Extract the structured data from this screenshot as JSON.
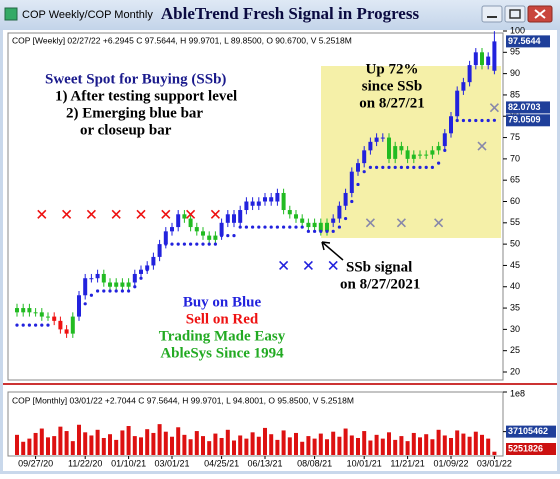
{
  "window_title": "COP Weekly/COP Monthly",
  "chart_data": {
    "type": "candlestick",
    "title": "AbleTrend Fresh Signal in Progress",
    "info": "COP [Weekly] 02/27/22 +6.2945 C 97.5644, H 99.9701, L 89.8500, O 90.6700, V 5.2518M",
    "categories": [
      null,
      null,
      null,
      "09/27/20",
      null,
      null,
      null,
      null,
      null,
      null,
      null,
      "11/22/20",
      null,
      null,
      null,
      null,
      null,
      null,
      "01/10/21",
      null,
      null,
      null,
      null,
      null,
      null,
      "03/01/21",
      null,
      null,
      null,
      null,
      null,
      null,
      null,
      "04/25/21",
      null,
      null,
      null,
      null,
      null,
      null,
      "06/13/21",
      null,
      null,
      null,
      null,
      null,
      null,
      null,
      "08/08/21",
      null,
      null,
      null,
      null,
      null,
      null,
      null,
      "10/01/21",
      null,
      null,
      null,
      null,
      null,
      null,
      "11/21/21",
      null,
      null,
      null,
      null,
      null,
      null,
      "01/09/22",
      null,
      null,
      null,
      null,
      null,
      null,
      "03/01/22"
    ],
    "open": [
      35,
      34,
      35,
      34,
      34,
      33,
      33,
      32,
      30,
      29,
      33,
      38,
      42,
      42,
      43,
      41,
      40,
      41,
      40,
      41,
      43,
      44,
      45,
      47,
      50,
      53,
      54,
      57,
      56,
      54,
      53,
      52,
      51,
      52,
      55,
      57,
      55,
      58,
      60,
      59,
      60,
      61,
      60,
      62,
      58,
      57,
      56,
      55,
      54,
      55,
      53,
      55,
      56,
      59,
      62,
      67,
      69,
      72,
      74,
      75,
      75,
      70,
      73,
      72,
      70,
      71,
      71,
      71,
      72,
      73,
      76,
      80,
      86,
      88,
      92,
      95,
      92,
      90.67
    ],
    "high": [
      36,
      36,
      36,
      35,
      35,
      34,
      34,
      33,
      31,
      34,
      39,
      43,
      43,
      44,
      44,
      42,
      42,
      42,
      42,
      44,
      45,
      46,
      48,
      51,
      54,
      55,
      58,
      58,
      57,
      55,
      54,
      53,
      53,
      56,
      58,
      58,
      59,
      61,
      61,
      61,
      62,
      62,
      63,
      63,
      59,
      58,
      57,
      56,
      56,
      56,
      56,
      57,
      60,
      63,
      68,
      70,
      73,
      75,
      76,
      76,
      76,
      74,
      74,
      73,
      72,
      72,
      72,
      73,
      74,
      77,
      81,
      87,
      89,
      93,
      96,
      96,
      95,
      99.9701
    ],
    "low": [
      33,
      33,
      33,
      33,
      32,
      32,
      31,
      29,
      28,
      28,
      32,
      37,
      41,
      41,
      40,
      39,
      39,
      39,
      39,
      40,
      42,
      43,
      44,
      46,
      49,
      52,
      53,
      55,
      53,
      52,
      51,
      50,
      50,
      51,
      54,
      54,
      54,
      57,
      58,
      58,
      59,
      59,
      59,
      57,
      56,
      55,
      54,
      53,
      53,
      52,
      52,
      54,
      55,
      58,
      61,
      66,
      68,
      71,
      73,
      74,
      69,
      69,
      71,
      69,
      69,
      70,
      70,
      70,
      71,
      72,
      75,
      79,
      85,
      87,
      91,
      91,
      91,
      89.85
    ],
    "close": [
      34,
      35,
      34,
      34,
      33,
      33,
      32,
      30,
      29,
      33,
      38,
      42,
      42,
      43,
      41,
      40,
      41,
      40,
      41,
      43,
      44,
      45,
      47,
      50,
      53,
      54,
      57,
      56,
      54,
      53,
      52,
      51,
      52,
      55,
      57,
      55,
      58,
      60,
      59,
      60,
      61,
      60,
      62,
      58,
      57,
      56,
      55,
      54,
      55,
      53,
      55,
      56,
      59,
      62,
      67,
      69,
      72,
      74,
      75,
      75,
      70,
      73,
      72,
      70,
      71,
      71,
      71,
      72,
      73,
      76,
      80,
      86,
      88,
      92,
      95,
      92,
      94,
      97.5644
    ],
    "colors": [
      "#22bb22",
      "#22bb22",
      "#22bb22",
      "#22bb22",
      "#22bb22",
      "#22bb22",
      "#ee1111",
      "#ee1111",
      "#ee1111",
      "#22bb22",
      "#2222dd",
      "#2222dd",
      "#2222dd",
      "#2222dd",
      "#22bb22",
      "#22bb22",
      "#22bb22",
      "#22bb22",
      "#22bb22",
      "#2222dd",
      "#2222dd",
      "#2222dd",
      "#2222dd",
      "#2222dd",
      "#2222dd",
      "#2222dd",
      "#2222dd",
      "#22bb22",
      "#22bb22",
      "#22bb22",
      "#22bb22",
      "#22bb22",
      "#22bb22",
      "#2222dd",
      "#2222dd",
      "#2222dd",
      "#2222dd",
      "#2222dd",
      "#2222dd",
      "#2222dd",
      "#2222dd",
      "#2222dd",
      "#2222dd",
      "#22bb22",
      "#22bb22",
      "#22bb22",
      "#22bb22",
      "#22bb22",
      "#22bb22",
      "#22bb22",
      "#22bb22",
      "#2222dd",
      "#2222dd",
      "#2222dd",
      "#2222dd",
      "#2222dd",
      "#2222dd",
      "#2222dd",
      "#2222dd",
      "#2222dd",
      "#22bb22",
      "#22bb22",
      "#22bb22",
      "#22bb22",
      "#22bb22",
      "#22bb22",
      "#22bb22",
      "#22bb22",
      "#22bb22",
      "#2222dd",
      "#2222dd",
      "#2222dd",
      "#2222dd",
      "#2222dd",
      "#2222dd",
      "#22bb22",
      "#2222dd",
      "#2222dd"
    ],
    "stops": [
      31,
      31,
      31,
      31,
      31,
      31,
      null,
      null,
      null,
      null,
      34,
      36,
      38,
      39,
      39,
      39,
      39,
      39,
      39,
      40,
      42,
      44,
      46,
      48,
      50,
      50,
      50,
      50,
      50,
      50,
      50,
      50,
      50,
      52,
      52,
      52,
      54,
      54,
      54,
      54,
      54,
      54,
      54,
      54,
      54,
      54,
      54,
      53,
      53,
      53,
      53,
      53,
      54,
      56,
      60,
      64,
      67,
      68,
      68,
      68,
      68,
      68,
      68,
      68,
      68,
      68,
      68,
      68,
      69,
      72,
      77,
      79,
      79,
      79,
      79,
      79,
      79,
      79.0509
    ],
    "stop_color": "#2222dd",
    "levels": [
      82.0703
    ],
    "markers": [
      {
        "color": "#ee1111",
        "x": [
          4,
          8,
          12,
          16,
          20,
          24,
          28,
          32
        ],
        "y": [
          57,
          57,
          57,
          57,
          57,
          57,
          57,
          57
        ]
      },
      {
        "color": "#2222dd",
        "x": [
          43,
          47,
          51
        ],
        "y": [
          45,
          45,
          45
        ]
      },
      {
        "color": "#8888aa",
        "x": [
          57,
          62,
          68,
          75,
          77
        ],
        "y": [
          55,
          55,
          55,
          73,
          82
        ]
      }
    ],
    "ylim": [
      20,
      100
    ],
    "yticks": [
      20,
      25,
      30,
      35,
      40,
      45,
      50,
      55,
      60,
      65,
      70,
      75,
      80,
      85,
      90,
      95,
      100
    ],
    "annotations": [
      {
        "text": "Sweet Spot for Buying (SSb)",
        "color": "#1a1a8c"
      },
      {
        "text": "1) After testing support level",
        "color": "#000000"
      },
      {
        "text": "2) Emerging blue bar",
        "color": "#000000"
      },
      {
        "text": "or closeup bar",
        "color": "#000000"
      },
      {
        "text": "Up 72%",
        "color": "#000000"
      },
      {
        "text": "since SSb",
        "color": "#000000"
      },
      {
        "text": "on 8/27/21",
        "color": "#000000"
      },
      {
        "text": "SSb signal",
        "color": "#000000"
      },
      {
        "text": "on 8/27/2021",
        "color": "#000000"
      },
      {
        "text": "Buy on Blue",
        "color": "#2222dd"
      },
      {
        "text": "Sell on Red",
        "color": "#ee1111"
      },
      {
        "text": "Trading Made Easy",
        "color": "#22aa22"
      },
      {
        "text": "AbleSys Since 1994",
        "color": "#22aa22"
      }
    ],
    "volume": {
      "info": "COP [Monthly] 03/01/22 +2.7044 C 97.5644, H 99.9701, L 94.8001, O 95.8500, V 5.2518M",
      "color": "#dd1111",
      "values": [
        32000000.0,
        21000000.0,
        26000000.0,
        35000000.0,
        42000000.0,
        28000000.0,
        30000000.0,
        45000000.0,
        38000000.0,
        22000000.0,
        48000000.0,
        36000000.0,
        31000000.0,
        40000000.0,
        27000000.0,
        33000000.0,
        24000000.0,
        39000000.0,
        46000000.0,
        30000000.0,
        28000000.0,
        41000000.0,
        35000000.0,
        49000000.0,
        37000000.0,
        29000000.0,
        44000000.0,
        32000000.0,
        25000000.0,
        38000000.0,
        30000000.0,
        22000000.0,
        34000000.0,
        27000000.0,
        40000000.0,
        23000000.0,
        31000000.0,
        26000000.0,
        36000000.0,
        29000000.0,
        43000000.0,
        33000000.0,
        24000000.0,
        39000000.0,
        28000000.0,
        35000000.0,
        21000000.0,
        30000000.0,
        26000000.0,
        34000000.0,
        25000000.0,
        37000000.0,
        29000000.0,
        42000000.0,
        31000000.0,
        27000000.0,
        38000000.0,
        23000000.0,
        32000000.0,
        26000000.0,
        36000000.0,
        24000000.0,
        30000000.0,
        22000000.0,
        35000000.0,
        28000000.0,
        33000000.0,
        25000000.0,
        40000000.0,
        31000000.0,
        27000000.0,
        39000000.0,
        34000000.0,
        29000000.0,
        37000000.0,
        32000000.0,
        26000000.0,
        5251826
      ],
      "ylim": [
        0,
        100000000
      ],
      "yticks": [
        {
          "value": 100000000,
          "label": "1e8"
        },
        37105462
      ]
    }
  }
}
